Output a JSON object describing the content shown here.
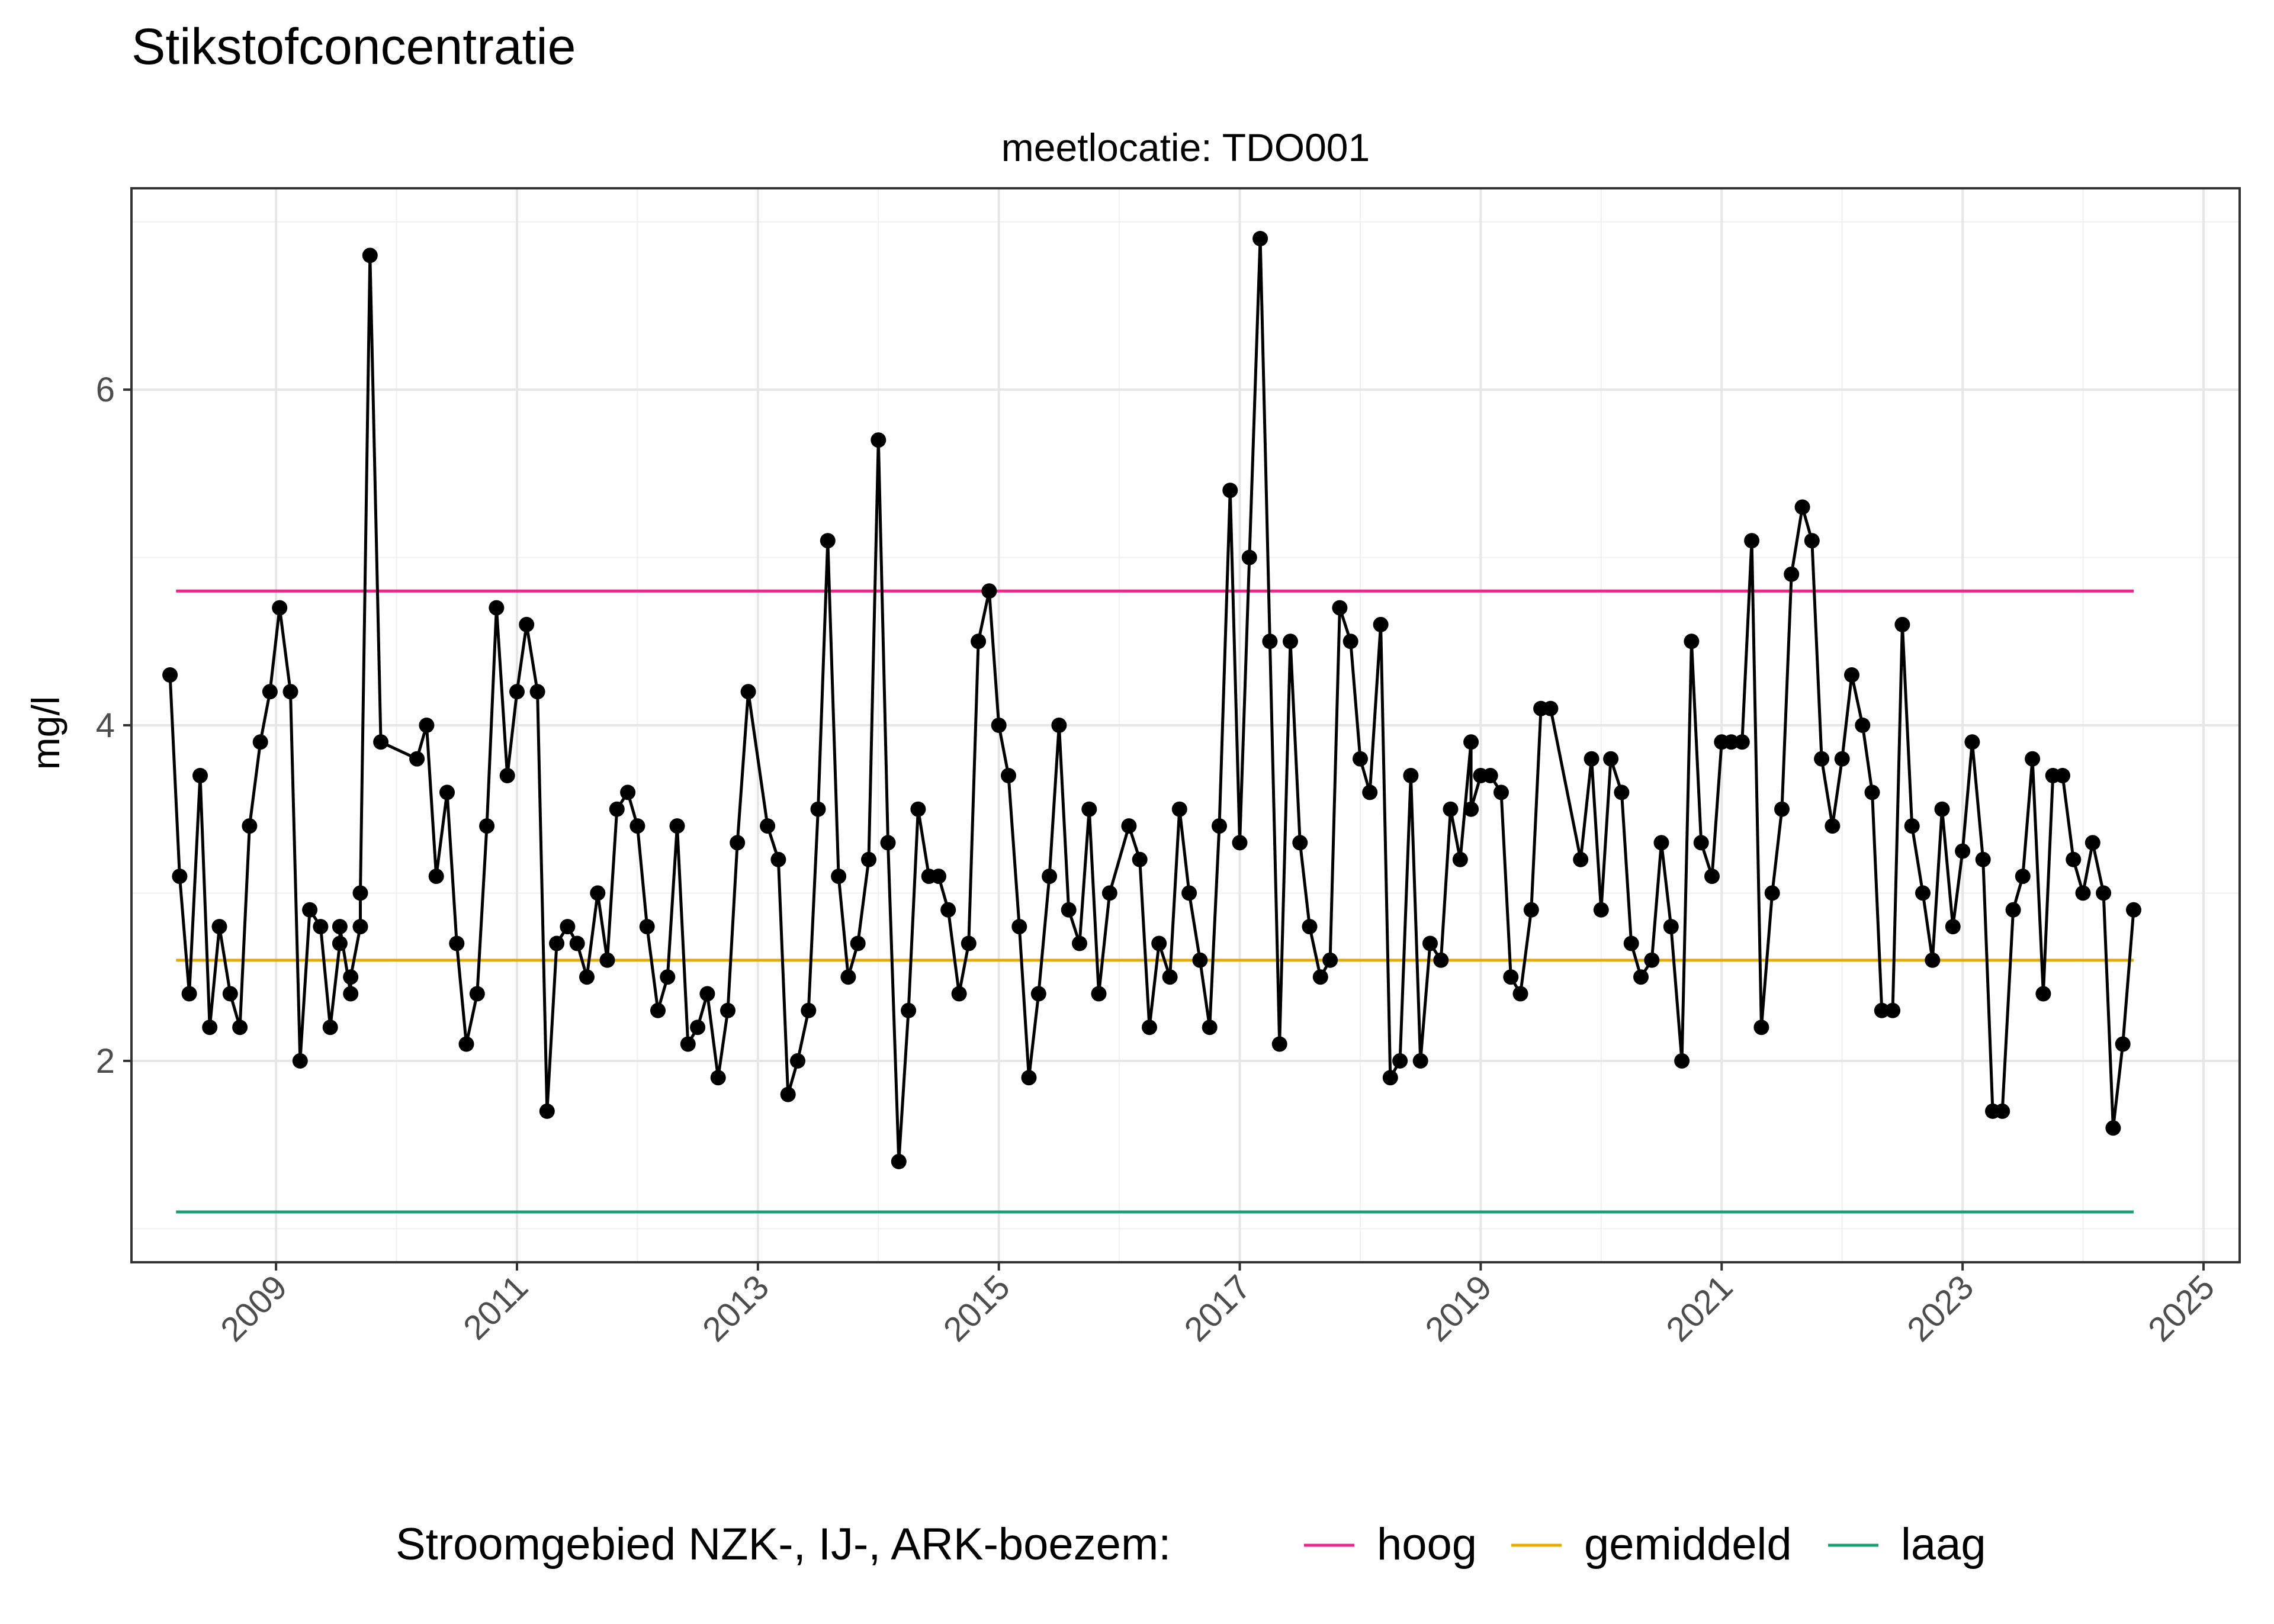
{
  "chart_data": {
    "type": "line",
    "title": "Stikstofconcentratie",
    "facet_label": "meetlocatie: TDO001",
    "xlabel": "",
    "ylabel": "mg/l",
    "xlim": [
      2007.8,
      2025.3
    ],
    "ylim": [
      0.8,
      7.2
    ],
    "x_ticks": [
      "2009",
      "2011",
      "2013",
      "2015",
      "2017",
      "2019",
      "2021",
      "2023",
      "2025"
    ],
    "y_ticks": [
      "2",
      "4",
      "6"
    ],
    "grid": true,
    "legend": {
      "position": "bottom",
      "title": "Stroomgebied NZK-, IJ-, ARK-boezem:",
      "entries": [
        {
          "label": "hoog",
          "color": "#e7298a"
        },
        {
          "label": "gemiddeld",
          "color": "#e6ab02"
        },
        {
          "label": "laag",
          "color": "#1b9e77"
        }
      ]
    },
    "reference_lines": [
      {
        "name": "hoog",
        "y": 4.8,
        "x_start": 2008.17,
        "x_end": 2024.42,
        "color": "#e7298a"
      },
      {
        "name": "gemiddeld",
        "y": 2.6,
        "x_start": 2008.17,
        "x_end": 2024.42,
        "color": "#e6ab02"
      },
      {
        "name": "laag",
        "y": 1.1,
        "x_start": 2008.17,
        "x_end": 2024.42,
        "color": "#1b9e77"
      }
    ],
    "series": [
      {
        "color": "#000000",
        "points": [
          [
            2008.12,
            4.3
          ],
          [
            2008.2,
            3.1
          ],
          [
            2008.28,
            2.4
          ],
          [
            2008.37,
            3.7
          ],
          [
            2008.45,
            2.2
          ],
          [
            2008.53,
            2.8
          ],
          [
            2008.62,
            2.4
          ],
          [
            2008.7,
            2.2
          ],
          [
            2008.78,
            3.4
          ],
          [
            2008.87,
            3.9
          ],
          [
            2008.95,
            4.2
          ],
          [
            2009.03,
            4.7
          ],
          [
            2009.12,
            4.2
          ],
          [
            2009.2,
            2.0
          ],
          [
            2009.28,
            2.9
          ],
          [
            2009.37,
            2.8
          ],
          [
            2009.45,
            2.2
          ],
          [
            2009.53,
            2.7
          ],
          [
            2009.53,
            2.8
          ],
          [
            2009.62,
            2.4
          ],
          [
            2009.62,
            2.5
          ],
          [
            2009.7,
            2.8
          ],
          [
            2009.7,
            3.0
          ],
          [
            2009.78,
            6.8
          ],
          [
            2009.87,
            3.9
          ],
          [
            2010.17,
            3.8
          ],
          [
            2010.25,
            4.0
          ],
          [
            2010.33,
            3.1
          ],
          [
            2010.42,
            3.6
          ],
          [
            2010.5,
            2.7
          ],
          [
            2010.58,
            2.1
          ],
          [
            2010.67,
            2.4
          ],
          [
            2010.75,
            3.4
          ],
          [
            2010.83,
            4.7
          ],
          [
            2010.92,
            3.7
          ],
          [
            2011.0,
            4.2
          ],
          [
            2011.08,
            4.6
          ],
          [
            2011.17,
            4.2
          ],
          [
            2011.25,
            1.7
          ],
          [
            2011.33,
            2.7
          ],
          [
            2011.42,
            2.8
          ],
          [
            2011.5,
            2.7
          ],
          [
            2011.58,
            2.5
          ],
          [
            2011.67,
            3.0
          ],
          [
            2011.75,
            2.6
          ],
          [
            2011.83,
            3.5
          ],
          [
            2011.92,
            3.6
          ],
          [
            2012.0,
            3.4
          ],
          [
            2012.08,
            2.8
          ],
          [
            2012.17,
            2.3
          ],
          [
            2012.25,
            2.5
          ],
          [
            2012.33,
            3.4
          ],
          [
            2012.42,
            2.1
          ],
          [
            2012.5,
            2.2
          ],
          [
            2012.58,
            2.4
          ],
          [
            2012.67,
            1.9
          ],
          [
            2012.75,
            2.3
          ],
          [
            2012.83,
            3.3
          ],
          [
            2012.92,
            4.2
          ],
          [
            2013.08,
            3.4
          ],
          [
            2013.17,
            3.2
          ],
          [
            2013.25,
            1.8
          ],
          [
            2013.33,
            2.0
          ],
          [
            2013.42,
            2.3
          ],
          [
            2013.5,
            3.5
          ],
          [
            2013.58,
            5.1
          ],
          [
            2013.67,
            3.1
          ],
          [
            2013.75,
            2.5
          ],
          [
            2013.83,
            2.7
          ],
          [
            2013.92,
            3.2
          ],
          [
            2014.0,
            5.7
          ],
          [
            2014.08,
            3.3
          ],
          [
            2014.17,
            1.4
          ],
          [
            2014.25,
            2.3
          ],
          [
            2014.33,
            3.5
          ],
          [
            2014.42,
            3.1
          ],
          [
            2014.5,
            3.1
          ],
          [
            2014.58,
            2.9
          ],
          [
            2014.67,
            2.4
          ],
          [
            2014.75,
            2.7
          ],
          [
            2014.83,
            4.5
          ],
          [
            2014.92,
            4.8
          ],
          [
            2015.0,
            4.0
          ],
          [
            2015.08,
            3.7
          ],
          [
            2015.17,
            2.8
          ],
          [
            2015.25,
            1.9
          ],
          [
            2015.33,
            2.4
          ],
          [
            2015.42,
            3.1
          ],
          [
            2015.5,
            4.0
          ],
          [
            2015.58,
            2.9
          ],
          [
            2015.67,
            2.7
          ],
          [
            2015.75,
            3.5
          ],
          [
            2015.83,
            2.4
          ],
          [
            2015.92,
            3.0
          ],
          [
            2016.08,
            3.4
          ],
          [
            2016.17,
            3.2
          ],
          [
            2016.25,
            2.2
          ],
          [
            2016.33,
            2.7
          ],
          [
            2016.42,
            2.5
          ],
          [
            2016.5,
            3.5
          ],
          [
            2016.58,
            3.0
          ],
          [
            2016.67,
            2.6
          ],
          [
            2016.75,
            2.2
          ],
          [
            2016.83,
            3.4
          ],
          [
            2016.92,
            5.4
          ],
          [
            2017.0,
            3.3
          ],
          [
            2017.08,
            5.0
          ],
          [
            2017.17,
            6.9
          ],
          [
            2017.25,
            4.5
          ],
          [
            2017.33,
            2.1
          ],
          [
            2017.42,
            4.5
          ],
          [
            2017.5,
            3.3
          ],
          [
            2017.58,
            2.8
          ],
          [
            2017.67,
            2.5
          ],
          [
            2017.75,
            2.6
          ],
          [
            2017.83,
            4.7
          ],
          [
            2017.92,
            4.5
          ],
          [
            2018.0,
            3.8
          ],
          [
            2018.08,
            3.6
          ],
          [
            2018.17,
            4.6
          ],
          [
            2018.25,
            1.9
          ],
          [
            2018.33,
            2.0
          ],
          [
            2018.42,
            3.7
          ],
          [
            2018.5,
            2.0
          ],
          [
            2018.58,
            2.7
          ],
          [
            2018.67,
            2.6
          ],
          [
            2018.75,
            3.5
          ],
          [
            2018.83,
            3.2
          ],
          [
            2018.92,
            3.9
          ],
          [
            2018.92,
            3.5
          ],
          [
            2019.0,
            3.7
          ],
          [
            2019.08,
            3.7
          ],
          [
            2019.17,
            3.6
          ],
          [
            2019.25,
            2.5
          ],
          [
            2019.33,
            2.4
          ],
          [
            2019.42,
            2.9
          ],
          [
            2019.5,
            4.1
          ],
          [
            2019.58,
            4.1
          ],
          [
            2019.83,
            3.2
          ],
          [
            2019.92,
            3.8
          ],
          [
            2020.0,
            2.9
          ],
          [
            2020.08,
            3.8
          ],
          [
            2020.17,
            3.6
          ],
          [
            2020.25,
            2.7
          ],
          [
            2020.33,
            2.5
          ],
          [
            2020.42,
            2.6
          ],
          [
            2020.5,
            3.3
          ],
          [
            2020.58,
            2.8
          ],
          [
            2020.67,
            2.0
          ],
          [
            2020.75,
            4.5
          ],
          [
            2020.83,
            3.3
          ],
          [
            2020.92,
            3.1
          ],
          [
            2021.0,
            3.9
          ],
          [
            2021.08,
            3.9
          ],
          [
            2021.17,
            3.9
          ],
          [
            2021.25,
            5.1
          ],
          [
            2021.33,
            2.2
          ],
          [
            2021.42,
            3.0
          ],
          [
            2021.5,
            3.5
          ],
          [
            2021.58,
            4.9
          ],
          [
            2021.67,
            5.3
          ],
          [
            2021.75,
            5.1
          ],
          [
            2021.83,
            3.8
          ],
          [
            2021.92,
            3.4
          ],
          [
            2022.0,
            3.8
          ],
          [
            2022.08,
            4.3
          ],
          [
            2022.17,
            4.0
          ],
          [
            2022.25,
            3.6
          ],
          [
            2022.33,
            2.3
          ],
          [
            2022.42,
            2.3
          ],
          [
            2022.5,
            4.6
          ],
          [
            2022.58,
            3.4
          ],
          [
            2022.67,
            3.0
          ],
          [
            2022.75,
            2.6
          ],
          [
            2022.83,
            3.5
          ],
          [
            2022.92,
            2.8
          ],
          [
            2023.0,
            3.25
          ],
          [
            2023.08,
            3.9
          ],
          [
            2023.17,
            3.2
          ],
          [
            2023.25,
            1.7
          ],
          [
            2023.33,
            1.7
          ],
          [
            2023.42,
            2.9
          ],
          [
            2023.5,
            3.1
          ],
          [
            2023.58,
            3.8
          ],
          [
            2023.67,
            2.4
          ],
          [
            2023.75,
            3.7
          ],
          [
            2023.83,
            3.7
          ],
          [
            2023.92,
            3.2
          ],
          [
            2024.0,
            3.0
          ],
          [
            2024.08,
            3.3
          ],
          [
            2024.17,
            3.0
          ],
          [
            2024.25,
            1.6
          ],
          [
            2024.33,
            2.1
          ],
          [
            2024.42,
            2.9
          ]
        ]
      }
    ]
  }
}
